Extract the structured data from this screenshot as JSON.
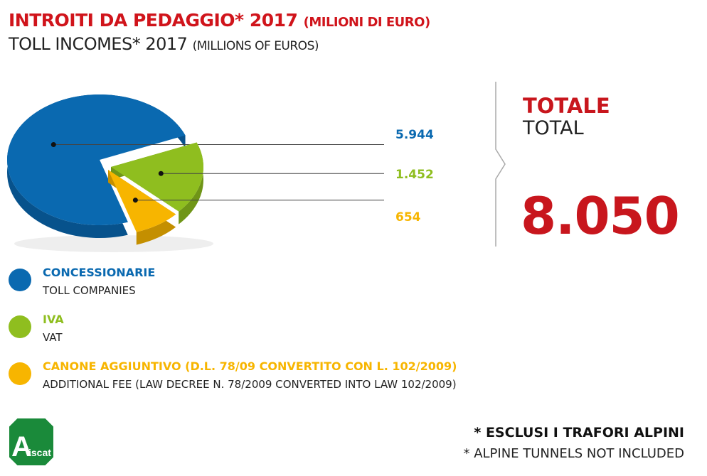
{
  "title_it": "INTROITI DA PEDAGGIO* 2017",
  "unit_it": "(MILIONI DI EURO)",
  "title_en": "TOLL INCOMES* 2017",
  "unit_en": "(MILLIONS OF EUROS)",
  "chart_data": {
    "type": "pie",
    "categories": [
      "CONCESSIONARIE",
      "IVA",
      "CANONE AGGIUNTIVO"
    ],
    "values": [
      5944,
      1452,
      654
    ],
    "labels": [
      "5.944",
      "1.452",
      "654"
    ],
    "colors": [
      "#0a69b0",
      "#8fbe1f",
      "#f7b500"
    ],
    "dark_colors": [
      "#07528c",
      "#6f9517",
      "#c48f00"
    ]
  },
  "total": {
    "label_it": "TOTALE",
    "label_en": "TOTAL",
    "value": "8.050"
  },
  "legend": [
    {
      "it": "CONCESSIONARIE",
      "en": "TOLL COMPANIES",
      "color": "#0a69b0"
    },
    {
      "it": "IVA",
      "en": "VAT",
      "color": "#8fbe1f"
    },
    {
      "it": "CANONE AGGIUNTIVO (D.L. 78/09 CONVERTITO CON L. 102/2009)",
      "en": "ADDITIONAL FEE (LAW DECREE N. 78/2009 CONVERTED INTO LAW 102/2009)",
      "color": "#f7b500"
    }
  ],
  "notes": {
    "it": "* ESCLUSI I TRAFORI ALPINI",
    "en": "* ALPINE TUNNELS NOT INCLUDED"
  },
  "logo": "Aiscat"
}
